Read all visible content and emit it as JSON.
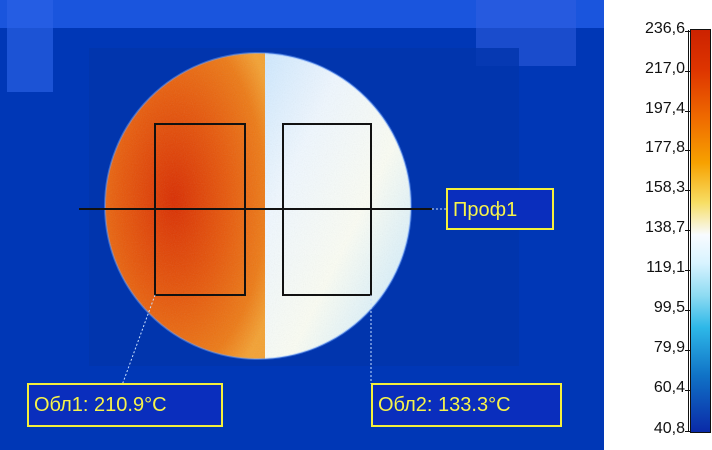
{
  "labels": {
    "profile": "Проф1",
    "area1": "Обл1: 210.9°C",
    "area2": "Обл2: 133.3°C"
  },
  "scale": {
    "values": [
      "236,6",
      "217,0",
      "197,4",
      "177,8",
      "158,3",
      "138,7",
      "119,1",
      "99,5",
      "79,9",
      "60,4",
      "40,8"
    ]
  },
  "colors": {
    "background_blue": "#0038b8",
    "label_yellow": "#f4f03b",
    "hot_orange": "#e7650d",
    "cool_white": "#e6f2ff",
    "line_black": "#111111"
  },
  "icons": {
    "thermal_image": "thermal-image-icon",
    "colorbar": "temperature-scale-icon"
  }
}
